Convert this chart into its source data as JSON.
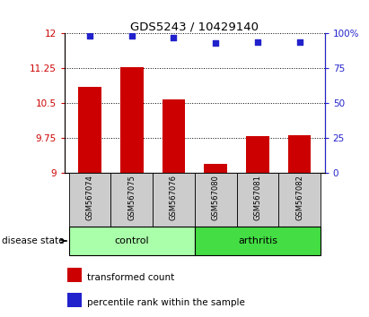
{
  "title": "GDS5243 / 10429140",
  "samples": [
    "GSM567074",
    "GSM567075",
    "GSM567076",
    "GSM567080",
    "GSM567081",
    "GSM567082"
  ],
  "bar_values": [
    10.85,
    11.28,
    10.58,
    9.2,
    9.78,
    9.8
  ],
  "percentile_values": [
    98,
    98,
    97,
    93,
    94,
    94
  ],
  "ylim_left": [
    9,
    12
  ],
  "ylim_right": [
    0,
    100
  ],
  "yticks_left": [
    9,
    9.75,
    10.5,
    11.25,
    12
  ],
  "ytick_labels_left": [
    "9",
    "9.75",
    "10.5",
    "11.25",
    "12"
  ],
  "yticks_right": [
    0,
    25,
    50,
    75,
    100
  ],
  "ytick_labels_right": [
    "0",
    "25",
    "50",
    "75",
    "100%"
  ],
  "bar_color": "#cc0000",
  "dot_color": "#2222cc",
  "control_color": "#aaffaa",
  "arthritis_color": "#44dd44",
  "control_label": "control",
  "arthritis_label": "arthritis",
  "disease_state_label": "disease state",
  "legend1_label": "transformed count",
  "legend2_label": "percentile rank within the sample",
  "tick_label_color_left": "#cc0000",
  "tick_label_color_right": "#2222cc",
  "bar_bottom": 9,
  "sample_box_color": "#cccccc",
  "bar_width": 0.55
}
